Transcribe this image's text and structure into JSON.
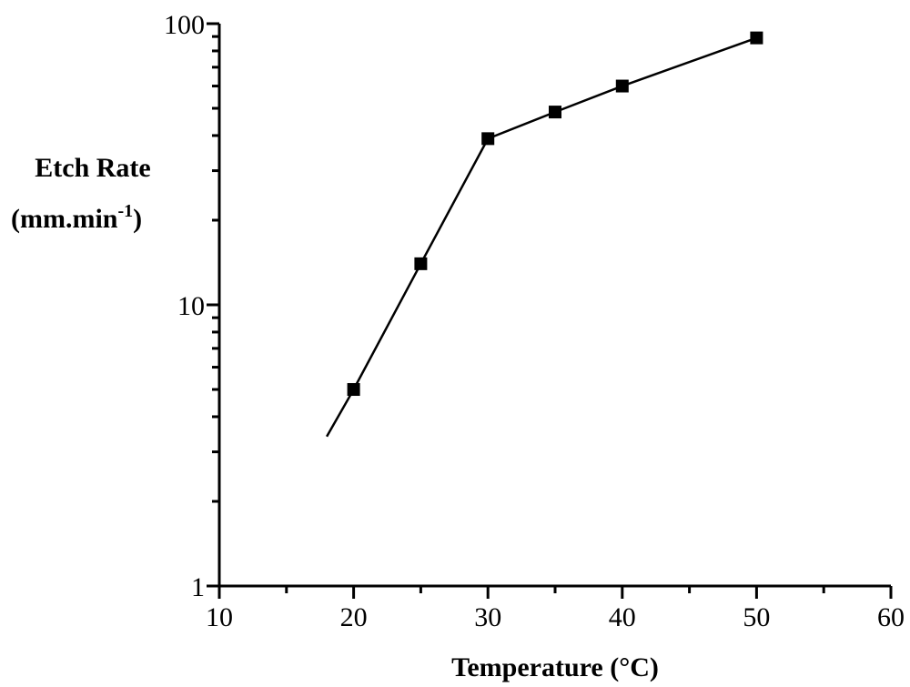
{
  "chart_data": {
    "type": "line",
    "title": "",
    "xlabel": "Temperature (°C)",
    "ylabel_line1": "Etch Rate",
    "ylabel_line2": "(mm.min",
    "ylabel_sup": "-1",
    "ylabel_close": ")",
    "xlim": [
      10,
      60
    ],
    "ylim": [
      1,
      100
    ],
    "yscale": "log",
    "grid": false,
    "x_ticks": [
      "10",
      "20",
      "30",
      "40",
      "50",
      "60"
    ],
    "y_ticks": [
      "1",
      "10",
      "100"
    ],
    "series": [
      {
        "marker": "square",
        "color": "#000000",
        "x": [
          20,
          25,
          30,
          35,
          40,
          50
        ],
        "y": [
          5,
          14,
          39,
          48.5,
          60,
          89
        ]
      }
    ],
    "fit_line": {
      "color": "#000000",
      "x": [
        18,
        20,
        25,
        30,
        35,
        40,
        50
      ],
      "y": [
        3.4,
        5,
        14,
        39,
        48.5,
        60,
        89
      ]
    }
  }
}
